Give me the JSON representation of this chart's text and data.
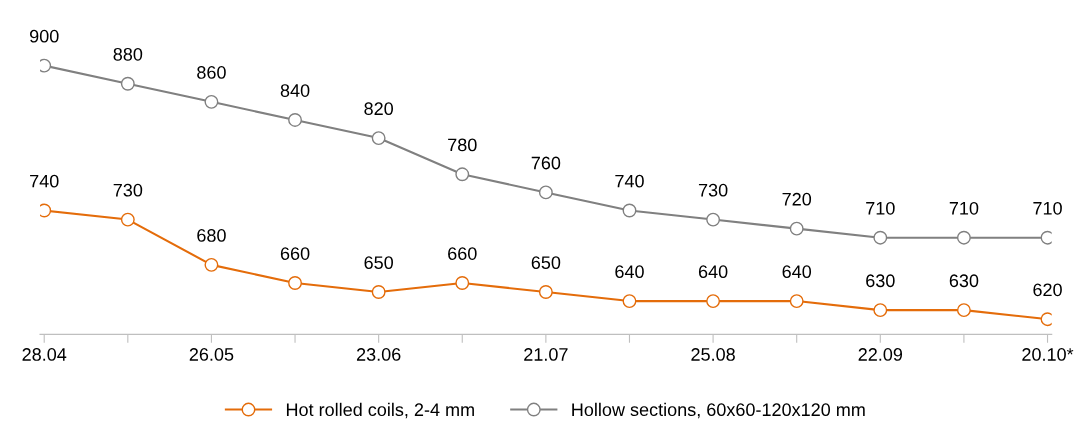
{
  "chart_data": {
    "type": "line",
    "categories": [
      "28.04",
      null,
      "26.05",
      null,
      "23.06",
      null,
      "21.07",
      null,
      "25.08",
      null,
      "22.09",
      null,
      "20.10*"
    ],
    "series": [
      {
        "name": "Hot rolled coils, 2-4 mm",
        "color": "#e46c0a",
        "values": [
          740,
          730,
          680,
          660,
          650,
          660,
          650,
          640,
          640,
          640,
          630,
          630,
          620
        ]
      },
      {
        "name": "Hollow sections, 60x60-120x120 mm",
        "color": "#808080",
        "values": [
          900,
          880,
          860,
          840,
          820,
          780,
          760,
          740,
          730,
          720,
          710,
          710,
          710
        ]
      }
    ],
    "marker": "circle",
    "data_labels": true,
    "grid": false,
    "legend": "bottom",
    "tick_labels": "x"
  }
}
